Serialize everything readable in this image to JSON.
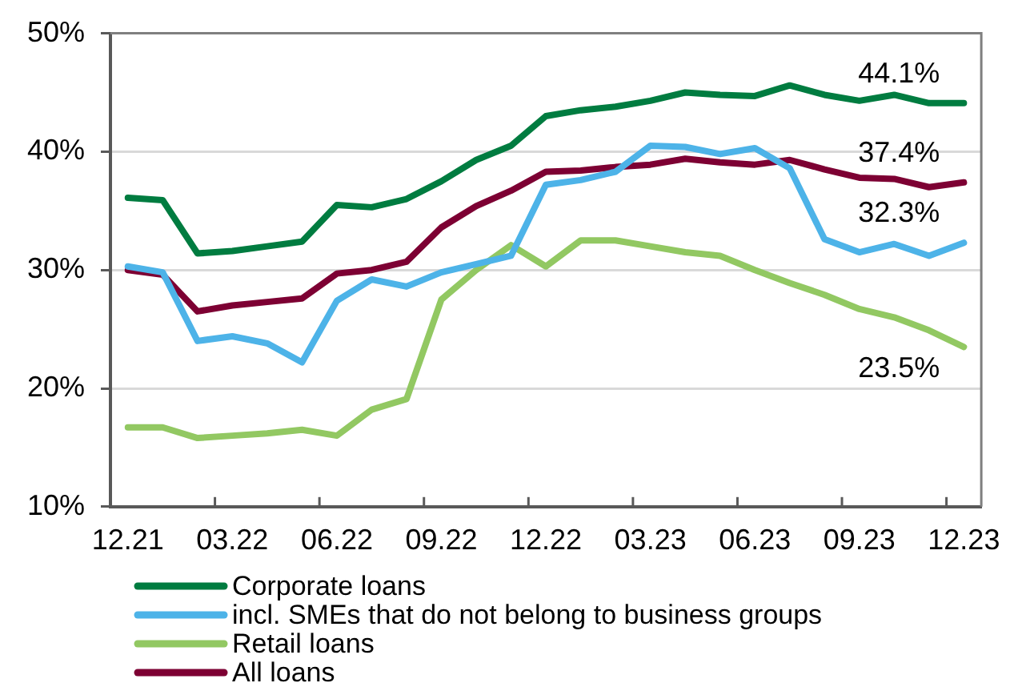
{
  "chart_data": {
    "type": "line",
    "categories": [
      "12.21",
      null,
      null,
      "03.22",
      null,
      null,
      "06.22",
      null,
      null,
      "09.22",
      null,
      null,
      "12.22",
      null,
      null,
      "03.23",
      null,
      null,
      "06.23",
      null,
      null,
      "09.23",
      null,
      null,
      "12.23"
    ],
    "series": [
      {
        "name": "Corporate loans",
        "color": "#007c40",
        "values": [
          36.1,
          35.9,
          31.4,
          31.6,
          32.0,
          32.4,
          35.5,
          35.3,
          36.0,
          37.5,
          39.3,
          40.5,
          43.0,
          43.5,
          43.8,
          44.3,
          45.0,
          44.8,
          44.7,
          45.6,
          44.8,
          44.3,
          44.8,
          44.1,
          44.1
        ],
        "value_labels": [
          null,
          null,
          null,
          null,
          null,
          null,
          null,
          null,
          null,
          null,
          null,
          null,
          null,
          null,
          null,
          null,
          null,
          null,
          null,
          null,
          null,
          null,
          null,
          null,
          "44.1%"
        ]
      },
      {
        "name": "incl. SMEs that do not belong to business groups",
        "color": "#4db3e8",
        "values": [
          30.3,
          29.8,
          24.0,
          24.4,
          23.8,
          22.2,
          27.4,
          29.2,
          28.6,
          29.8,
          30.5,
          31.2,
          37.2,
          37.6,
          38.3,
          40.5,
          40.4,
          39.8,
          40.3,
          38.6,
          32.6,
          31.5,
          32.2,
          31.2,
          32.3
        ],
        "value_labels": [
          null,
          null,
          null,
          null,
          null,
          null,
          null,
          null,
          null,
          null,
          null,
          null,
          null,
          null,
          null,
          null,
          null,
          null,
          null,
          null,
          null,
          null,
          null,
          null,
          "32.3%"
        ]
      },
      {
        "name": "Retail loans",
        "color": "#92c862",
        "values": [
          16.7,
          16.7,
          15.8,
          16.0,
          16.2,
          16.5,
          16.0,
          18.2,
          19.1,
          27.5,
          30.0,
          32.1,
          30.3,
          32.5,
          32.5,
          32.0,
          31.5,
          31.2,
          30.0,
          28.9,
          27.9,
          26.7,
          26.0,
          24.9,
          23.5
        ],
        "value_labels": [
          null,
          null,
          null,
          null,
          null,
          null,
          null,
          null,
          null,
          null,
          null,
          null,
          null,
          null,
          null,
          null,
          null,
          null,
          null,
          null,
          null,
          null,
          null,
          null,
          "23.5%"
        ]
      },
      {
        "name": "All loans",
        "color": "#7d0033",
        "values": [
          30.0,
          29.6,
          26.5,
          27.0,
          27.3,
          27.6,
          29.7,
          30.0,
          30.7,
          33.6,
          35.4,
          36.7,
          38.3,
          38.4,
          38.7,
          38.9,
          39.4,
          39.1,
          38.9,
          39.3,
          38.5,
          37.8,
          37.7,
          37.0,
          37.4
        ],
        "value_labels": [
          null,
          null,
          null,
          null,
          null,
          null,
          null,
          null,
          null,
          null,
          null,
          null,
          null,
          null,
          null,
          null,
          null,
          null,
          null,
          null,
          null,
          null,
          null,
          null,
          "37.4%"
        ]
      }
    ],
    "ylim": [
      10,
      50
    ],
    "yticks": [
      {
        "value": 10,
        "label": "10%"
      },
      {
        "value": 20,
        "label": "20%"
      },
      {
        "value": 30,
        "label": "30%"
      },
      {
        "value": 40,
        "label": "40%"
      },
      {
        "value": 50,
        "label": "50%"
      }
    ],
    "grid": "y",
    "legend": "bottom"
  }
}
